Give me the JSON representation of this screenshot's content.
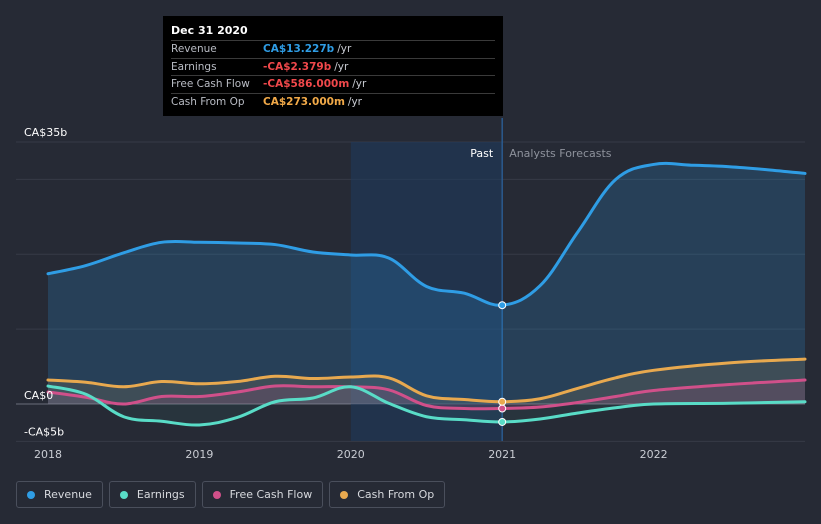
{
  "tooltip": {
    "date": "Dec 31 2020",
    "rows": [
      {
        "label": "Revenue",
        "value": "CA$13.227b",
        "unit": "/yr",
        "color": "#2f9de5"
      },
      {
        "label": "Earnings",
        "value": "-CA$2.379b",
        "unit": "/yr",
        "color": "#f0484b"
      },
      {
        "label": "Free Cash Flow",
        "value": "-CA$586.000m",
        "unit": "/yr",
        "color": "#f0484b"
      },
      {
        "label": "Cash From Op",
        "value": "CA$273.000m",
        "unit": "/yr",
        "color": "#f1a948"
      }
    ]
  },
  "legend": [
    {
      "label": "Revenue",
      "color": "#2f9de5"
    },
    {
      "label": "Earnings",
      "color": "#59dcc7"
    },
    {
      "label": "Free Cash Flow",
      "color": "#d0508a"
    },
    {
      "label": "Cash From Op",
      "color": "#e8a94f"
    }
  ],
  "chart_data": {
    "type": "line",
    "y_tick_labels": [
      "CA$35b",
      "CA$0",
      "-CA$5b"
    ],
    "y_ticks": [
      35,
      0,
      -5
    ],
    "ylim": [
      -5,
      35
    ],
    "xlim": [
      2018,
      2023
    ],
    "x_tick_labels": [
      "2018",
      "2019",
      "2020",
      "2021",
      "2022"
    ],
    "x_ticks": [
      2018,
      2019,
      2020,
      2021,
      2022
    ],
    "past_label": "Past",
    "forecast_label": "Analysts Forecasts",
    "past_start": 2020,
    "divider": 2021,
    "series": [
      {
        "name": "Revenue",
        "color": "#2f9de5",
        "x": [
          2018,
          2018.25,
          2018.5,
          2018.75,
          2019,
          2019.25,
          2019.5,
          2019.75,
          2020,
          2020.25,
          2020.5,
          2020.75,
          2021,
          2021.25,
          2021.5,
          2021.75,
          2022,
          2022.25,
          2022.5,
          2022.75,
          2023
        ],
        "y": [
          17.4,
          18.5,
          20.2,
          21.6,
          21.6,
          21.5,
          21.3,
          20.3,
          19.9,
          19.5,
          15.7,
          14.8,
          13.2,
          15.8,
          23.0,
          30.0,
          32.0,
          31.9,
          31.7,
          31.3,
          30.8
        ]
      },
      {
        "name": "Earnings",
        "color": "#59dcc7",
        "x": [
          2018,
          2018.25,
          2018.5,
          2018.75,
          2019,
          2019.25,
          2019.5,
          2019.75,
          2020,
          2020.25,
          2020.5,
          2020.75,
          2021,
          2021.25,
          2021.5,
          2021.75,
          2022,
          2022.5,
          2023
        ],
        "y": [
          2.4,
          1.3,
          -1.7,
          -2.3,
          -2.8,
          -1.8,
          0.3,
          0.8,
          2.3,
          0.1,
          -1.7,
          -2.1,
          -2.4,
          -2.0,
          -1.2,
          -0.5,
          0.0,
          0.1,
          0.3
        ]
      },
      {
        "name": "Free Cash Flow",
        "color": "#d0508a",
        "x": [
          2018,
          2018.25,
          2018.5,
          2018.75,
          2019,
          2019.25,
          2019.5,
          2019.75,
          2020,
          2020.25,
          2020.5,
          2020.75,
          2021,
          2021.25,
          2021.5,
          2021.75,
          2022,
          2022.5,
          2023
        ],
        "y": [
          1.6,
          0.9,
          0.0,
          1.0,
          1.0,
          1.6,
          2.4,
          2.3,
          2.3,
          1.9,
          -0.2,
          -0.6,
          -0.6,
          -0.4,
          0.2,
          1.0,
          1.8,
          2.6,
          3.2
        ]
      },
      {
        "name": "Cash From Op",
        "color": "#e8a94f",
        "x": [
          2018,
          2018.25,
          2018.5,
          2018.75,
          2019,
          2019.25,
          2019.5,
          2019.75,
          2020,
          2020.25,
          2020.5,
          2020.75,
          2021,
          2021.25,
          2021.5,
          2021.75,
          2022,
          2022.5,
          2023
        ],
        "y": [
          3.2,
          2.9,
          2.3,
          3.0,
          2.7,
          3.0,
          3.7,
          3.4,
          3.6,
          3.5,
          1.1,
          0.6,
          0.3,
          0.7,
          2.1,
          3.5,
          4.5,
          5.5,
          6.0
        ]
      }
    ],
    "highlight_x": 2021
  }
}
